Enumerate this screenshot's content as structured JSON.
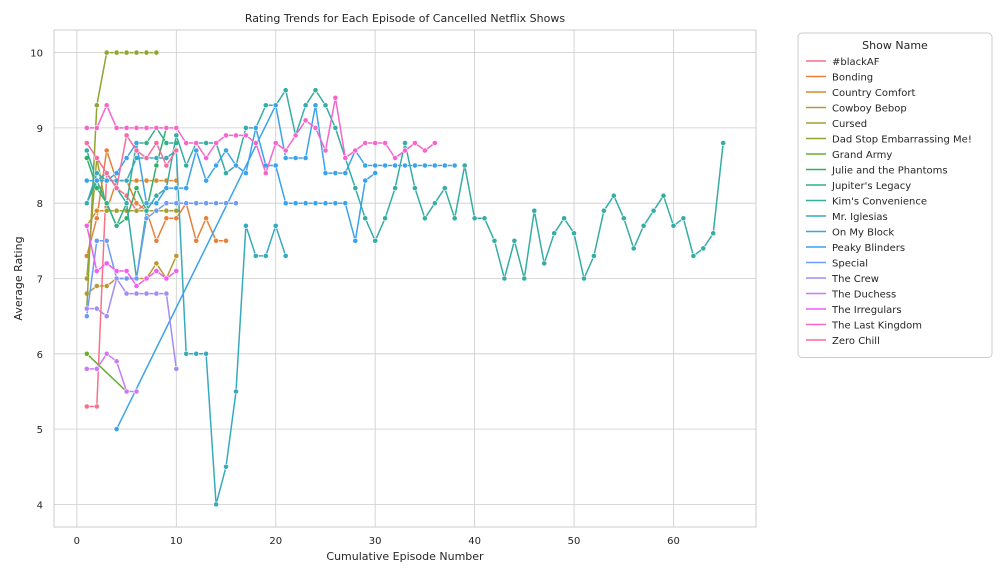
{
  "chart_data": {
    "type": "line",
    "title": "Rating Trends for Each Episode of Cancelled Netflix Shows",
    "xlabel": "Cumulative Episode Number",
    "ylabel": "Average Rating",
    "xlim": [
      -2.3,
      68.3
    ],
    "ylim": [
      3.7,
      10.3
    ],
    "xticks": [
      0,
      10,
      20,
      30,
      40,
      50,
      60
    ],
    "yticks": [
      4,
      5,
      6,
      7,
      8,
      9,
      10
    ],
    "grid": true,
    "legend_title": "Show Name",
    "legend_position": "outside-right",
    "markers": true,
    "series": [
      {
        "name": "#blackAF",
        "color": "#f77189",
        "x": [
          1,
          2,
          3,
          4,
          5,
          6,
          7,
          8
        ],
        "y": [
          5.3,
          5.3,
          8.4,
          8.2,
          8.1,
          7.9,
          8.0,
          8.0
        ]
      },
      {
        "name": "Bonding",
        "color": "#e6803a",
        "x": [
          1,
          2,
          3,
          4,
          5,
          6,
          7,
          8,
          9,
          10,
          11,
          12,
          13,
          14,
          15
        ],
        "y": [
          7.3,
          7.8,
          8.7,
          8.3,
          8.3,
          8.0,
          7.9,
          7.5,
          7.8,
          7.8,
          8.0,
          7.5,
          7.8,
          7.5,
          7.5
        ]
      },
      {
        "name": "Country Comfort",
        "color": "#d58c32",
        "x": [
          1,
          2,
          3,
          4,
          5,
          6,
          7,
          8,
          9,
          10
        ],
        "y": [
          7.7,
          7.9,
          7.9,
          8.3,
          8.3,
          8.3,
          8.3,
          8.3,
          8.3,
          8.3
        ]
      },
      {
        "name": "Cowboy Bebop",
        "color": "#bb9832",
        "x": [
          1,
          2,
          3,
          4,
          5,
          6,
          7,
          8,
          9,
          10
        ],
        "y": [
          6.8,
          6.9,
          6.9,
          7.0,
          7.0,
          7.0,
          7.0,
          7.2,
          7.0,
          7.3
        ]
      },
      {
        "name": "Cursed",
        "color": "#a59e31",
        "x": [
          1,
          2,
          3,
          4,
          5,
          6,
          7,
          8,
          9,
          10
        ],
        "y": [
          7.0,
          8.6,
          7.9,
          7.9,
          7.9,
          7.9,
          7.9,
          7.9,
          7.9,
          7.9
        ]
      },
      {
        "name": "Dad Stop Embarrassing Me!",
        "color": "#8ea531",
        "x": [
          1,
          2,
          3,
          4,
          5,
          6,
          7,
          8
        ],
        "y": [
          6.6,
          9.3,
          10.0,
          10.0,
          10.0,
          10.0,
          10.0,
          10.0
        ]
      },
      {
        "name": "Grand Army",
        "color": "#66ad31",
        "x": [
          1,
          5
        ],
        "y": [
          6.0,
          5.5
        ]
      },
      {
        "name": "Julie and the Phantoms",
        "color": "#32b166",
        "x": [
          1,
          2,
          3,
          4,
          5,
          6,
          7,
          8,
          9
        ],
        "y": [
          8.6,
          8.2,
          8.0,
          7.7,
          7.8,
          8.2,
          7.9,
          8.5,
          9.0
        ]
      },
      {
        "name": "Jupiter's Legacy",
        "color": "#34ae8d",
        "x": [
          1,
          2,
          3,
          4,
          5,
          6,
          7,
          8,
          9,
          10
        ],
        "y": [
          8.0,
          8.3,
          8.0,
          7.7,
          8.0,
          8.8,
          8.8,
          9.0,
          8.8,
          8.8
        ]
      },
      {
        "name": "Kim's Convenience",
        "color": "#36ada4",
        "x": [
          1,
          2,
          3,
          4,
          5,
          6,
          7,
          8,
          9,
          10,
          11,
          12,
          13,
          14,
          15,
          16,
          17,
          18,
          19,
          20,
          21,
          22,
          23,
          24,
          25,
          26,
          27,
          28,
          29,
          30,
          31,
          32,
          33,
          34,
          35,
          36,
          37,
          38,
          39,
          40,
          41,
          42,
          43,
          44,
          45,
          46,
          47,
          48,
          49,
          50,
          51,
          52,
          53,
          54,
          55,
          56,
          57,
          58,
          59,
          60,
          61,
          62,
          63,
          64,
          65
        ],
        "y": [
          8.7,
          8.3,
          8.4,
          8.2,
          8.0,
          7.0,
          7.9,
          8.1,
          8.2,
          8.9,
          8.5,
          8.8,
          8.8,
          8.8,
          8.4,
          8.5,
          9.0,
          9.0,
          9.3,
          9.3,
          9.5,
          8.9,
          9.3,
          9.5,
          9.3,
          9.0,
          8.6,
          8.2,
          7.8,
          7.5,
          7.8,
          8.2,
          8.8,
          8.2,
          7.8,
          8.0,
          8.2,
          7.8,
          8.5,
          7.8,
          7.8,
          7.5,
          7.0,
          7.5,
          7.0,
          7.9,
          7.2,
          7.6,
          7.8,
          7.6,
          7.0,
          7.3,
          7.9,
          8.1,
          7.8,
          7.4,
          7.7,
          7.9,
          8.1,
          7.7,
          7.8,
          7.3,
          7.4,
          7.6,
          8.8
        ]
      },
      {
        "name": "Mr. Iglesias",
        "color": "#38aabd",
        "x": [
          1,
          2,
          3,
          4,
          5,
          6,
          7,
          8,
          9,
          10,
          11,
          12,
          13,
          14,
          15,
          16,
          17,
          18,
          19,
          20,
          21
        ],
        "y": [
          8.0,
          8.4,
          8.3,
          8.3,
          8.3,
          8.6,
          8.6,
          8.6,
          8.6,
          8.7,
          6.0,
          6.0,
          6.0,
          4.0,
          4.5,
          5.5,
          7.7,
          7.3,
          7.3,
          7.7,
          7.3
        ]
      },
      {
        "name": "On My Block",
        "color": "#3ba3ec",
        "x": [
          4,
          20,
          21,
          22,
          23,
          24,
          25,
          26,
          27,
          28,
          29,
          30,
          31,
          32,
          33,
          34,
          35,
          36,
          37,
          38
        ],
        "y": [
          5.0,
          9.3,
          8.6,
          8.6,
          8.6,
          9.3,
          8.4,
          8.4,
          8.4,
          8.7,
          8.5,
          8.5,
          8.5,
          8.5,
          8.5,
          8.5,
          8.5,
          8.5,
          8.5,
          8.5
        ]
      },
      {
        "name": "Peaky Blinders",
        "color": "#3ba3ec",
        "x": [
          1,
          2,
          3,
          4,
          5,
          6,
          7,
          8,
          9,
          10,
          11,
          12,
          13,
          14,
          15,
          16,
          17,
          18,
          19,
          20,
          21,
          22,
          23,
          24,
          25,
          26,
          27,
          28,
          29,
          30
        ],
        "y": [
          8.3,
          8.3,
          8.3,
          8.4,
          8.6,
          8.8,
          8.0,
          8.0,
          8.2,
          8.2,
          8.2,
          8.7,
          8.3,
          8.5,
          8.7,
          8.5,
          8.4,
          9.0,
          8.5,
          8.5,
          8.0,
          8.0,
          8.0,
          8.0,
          8.0,
          8.0,
          8.0,
          7.5,
          8.3,
          8.4
        ]
      },
      {
        "name": "Special",
        "color": "#6e9bf4",
        "x": [
          1,
          2,
          3,
          4,
          5,
          6,
          7,
          8,
          9,
          10,
          11,
          12,
          13,
          14,
          15,
          16
        ],
        "y": [
          6.5,
          7.5,
          7.5,
          7.0,
          7.0,
          7.0,
          7.8,
          7.9,
          8.0,
          8.0,
          8.0,
          8.0,
          8.0,
          8.0,
          8.0,
          8.0
        ]
      },
      {
        "name": "The Crew",
        "color": "#a48cf4",
        "x": [
          1,
          2,
          3,
          4,
          5,
          6,
          7,
          8,
          9,
          10
        ],
        "y": [
          6.6,
          6.6,
          6.5,
          7.0,
          6.8,
          6.8,
          6.8,
          6.8,
          6.8,
          5.8
        ]
      },
      {
        "name": "The Duchess",
        "color": "#cc7af4",
        "x": [
          1,
          2,
          3,
          4,
          5,
          6
        ],
        "y": [
          5.8,
          5.8,
          6.0,
          5.9,
          5.5,
          5.5
        ]
      },
      {
        "name": "The Irregulars",
        "color": "#f45cf2",
        "x": [
          1,
          2,
          3,
          4,
          5,
          6,
          7,
          8,
          9,
          10
        ],
        "y": [
          7.7,
          7.1,
          7.2,
          7.1,
          7.1,
          6.9,
          7.0,
          7.1,
          7.0,
          7.1
        ]
      },
      {
        "name": "The Last Kingdom",
        "color": "#f565cc",
        "x": [
          1,
          2,
          3,
          4,
          5,
          6,
          7,
          8,
          9,
          10,
          11,
          12,
          13,
          14,
          15,
          16,
          17,
          18,
          19,
          20,
          21,
          22,
          23,
          24,
          25,
          26,
          27,
          28,
          29,
          30,
          31,
          32,
          33,
          34,
          35,
          36
        ],
        "y": [
          9.0,
          9.0,
          9.3,
          9.0,
          9.0,
          9.0,
          9.0,
          9.0,
          9.0,
          9.0,
          8.8,
          8.8,
          8.6,
          8.8,
          8.9,
          8.9,
          8.9,
          8.8,
          8.4,
          8.8,
          8.7,
          8.9,
          9.1,
          9.0,
          8.7,
          9.4,
          8.6,
          8.7,
          8.8,
          8.8,
          8.8,
          8.6,
          8.7,
          8.8,
          8.7,
          8.8
        ]
      },
      {
        "name": "Zero Chill",
        "color": "#f66ba0",
        "x": [
          1,
          2,
          3,
          4,
          5,
          6,
          7,
          8,
          9,
          10
        ],
        "y": [
          8.8,
          8.6,
          8.4,
          8.2,
          8.9,
          8.7,
          8.6,
          8.8,
          8.5,
          8.7
        ]
      }
    ]
  }
}
